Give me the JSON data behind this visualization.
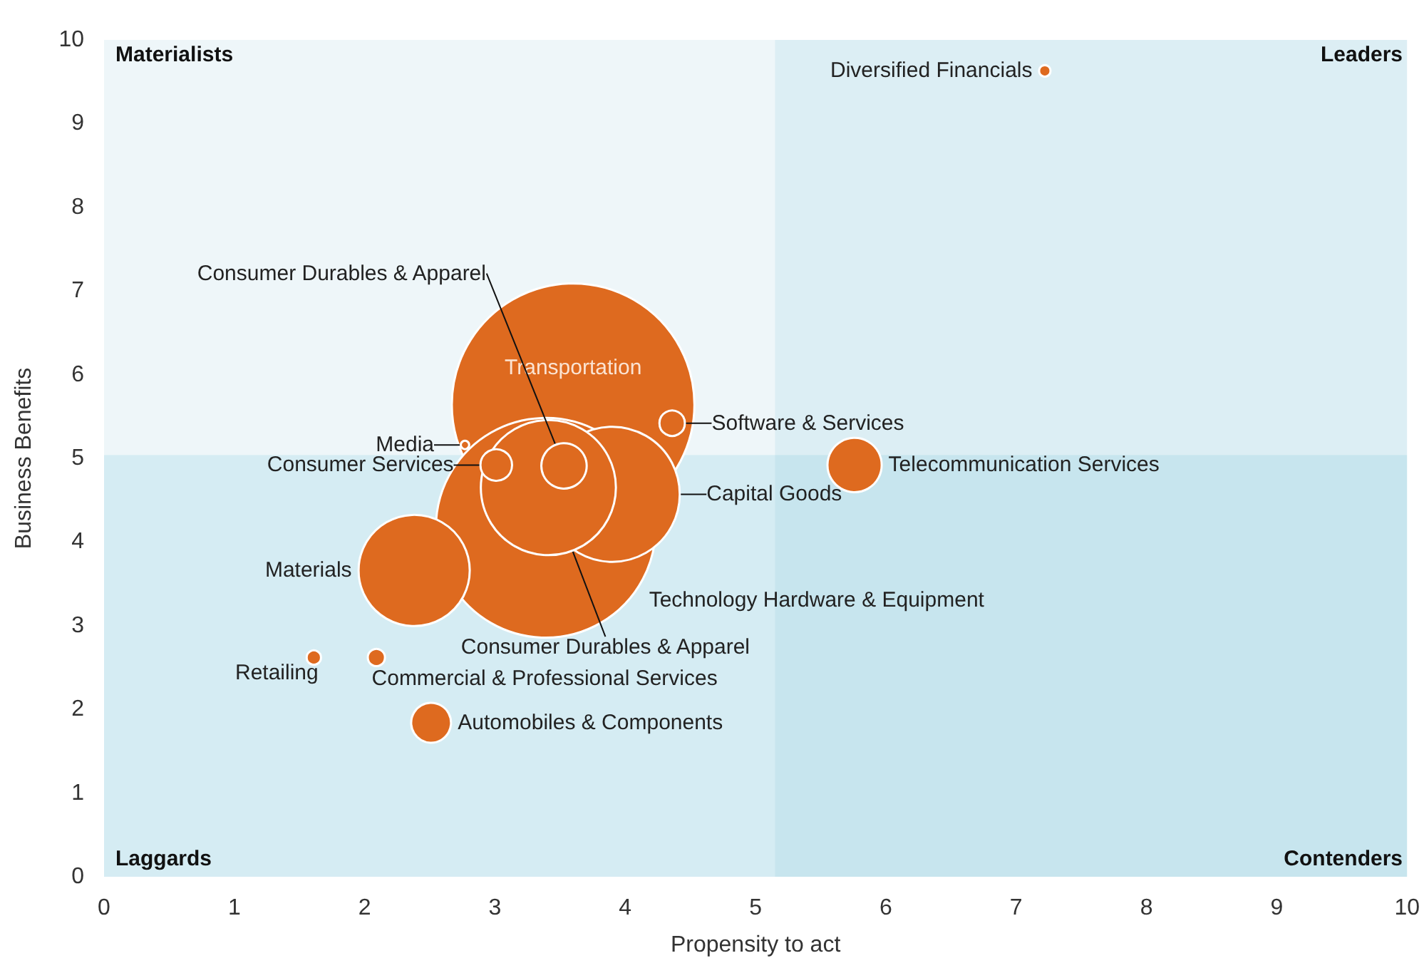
{
  "chart_data": {
    "type": "bubble",
    "xlabel": "Propensity to act",
    "ylabel": "Business Benefits",
    "xlim": [
      0,
      10
    ],
    "ylim": [
      0,
      10
    ],
    "xticks": [
      0,
      1,
      2,
      3,
      4,
      5,
      6,
      7,
      8,
      9,
      10
    ],
    "yticks": [
      0,
      1,
      2,
      3,
      4,
      5,
      6,
      7,
      8,
      9,
      10
    ],
    "grid": false,
    "legend": false,
    "annotations": [
      "Materialists",
      "Leaders",
      "Laggards",
      "Contenders"
    ],
    "bands": [
      {
        "axis": "y",
        "from": 5.04,
        "to": 10,
        "color": "#eef6f9"
      },
      {
        "axis": "y",
        "from": 0,
        "to": 5.04,
        "color": "#d5ecf3"
      },
      {
        "axis": "x",
        "from": 5.15,
        "to": 10,
        "color": "#7cc3d8"
      }
    ],
    "series": [
      {
        "name": "Diversified Financials",
        "color": "#de6a1f",
        "x": [
          7.22
        ],
        "values": [
          9.63
        ],
        "sizes": [
          0.0022
        ]
      },
      {
        "name": "Transportation",
        "color": "#de6a1f",
        "x": [
          3.6
        ],
        "values": [
          5.64
        ],
        "sizes": [
          1
        ]
      },
      {
        "name": "Technology Hardware & Equipment",
        "color": "#de6a1f",
        "x": [
          3.39
        ],
        "values": [
          4.17
        ],
        "sizes": [
          0.82
        ]
      },
      {
        "name": "Consumer Durables & Apparel",
        "color": "#de6a1f",
        "x": [
          3.41
        ],
        "values": [
          4.65
        ],
        "sizes": [
          0.31
        ]
      },
      {
        "name": "Consumer Durables & Apparel",
        "color": "#de6a1f",
        "x": [
          3.53
        ],
        "values": [
          4.91
        ],
        "sizes": [
          0.035
        ]
      },
      {
        "name": "Capital Goods",
        "color": "#de6a1f",
        "x": [
          3.9
        ],
        "values": [
          4.57
        ],
        "sizes": [
          0.31
        ]
      },
      {
        "name": "Materials",
        "color": "#de6a1f",
        "x": [
          2.38
        ],
        "values": [
          3.66
        ],
        "sizes": [
          0.21
        ]
      },
      {
        "name": "Software & Services",
        "color": "#de6a1f",
        "x": [
          4.36
        ],
        "values": [
          5.42
        ],
        "sizes": [
          0.011
        ]
      },
      {
        "name": "Telecommunication Services",
        "color": "#de6a1f",
        "x": [
          5.76
        ],
        "values": [
          4.92
        ],
        "sizes": [
          0.05
        ]
      },
      {
        "name": "Media",
        "color": "#de6a1f",
        "x": [
          2.77
        ],
        "values": [
          5.16
        ],
        "sizes": [
          0.0012
        ]
      },
      {
        "name": "Consumer Services",
        "color": "#de6a1f",
        "x": [
          3.01
        ],
        "values": [
          4.92
        ],
        "sizes": [
          0.017
        ]
      },
      {
        "name": "Retailing",
        "color": "#de6a1f",
        "x": [
          1.61
        ],
        "values": [
          2.62
        ],
        "sizes": [
          0.0035
        ]
      },
      {
        "name": "Commercial & Professional Services",
        "color": "#de6a1f",
        "x": [
          2.09
        ],
        "values": [
          2.62
        ],
        "sizes": [
          0.005
        ]
      },
      {
        "name": "Automobiles & Components",
        "color": "#de6a1f",
        "x": [
          2.51
        ],
        "values": [
          1.84
        ],
        "sizes": [
          0.027
        ]
      }
    ]
  }
}
